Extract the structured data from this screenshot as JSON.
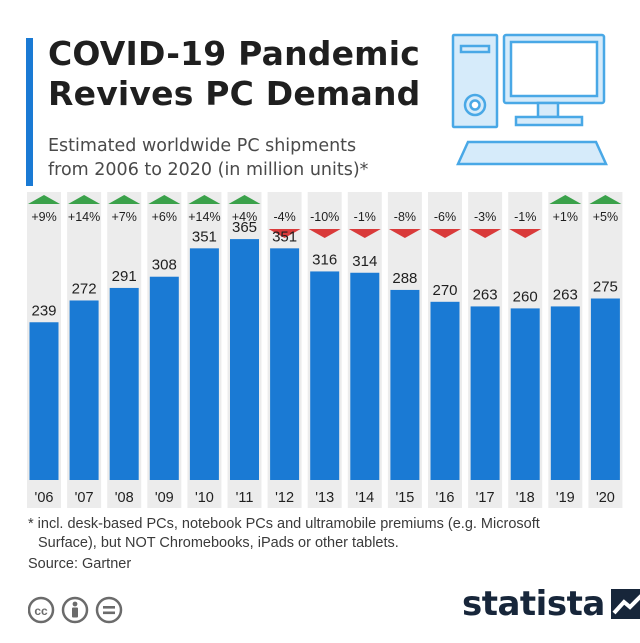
{
  "header": {
    "title_line1": "COVID-19 Pandemic",
    "title_line2": "Revives PC Demand",
    "subtitle_line1": "Estimated worldwide PC shipments",
    "subtitle_line2": "from 2006 to 2020 (in million units)*"
  },
  "chart_data": {
    "type": "bar",
    "title": "COVID-19 Pandemic Revives PC Demand",
    "subtitle": "Estimated worldwide PC shipments from 2006 to 2020 (in million units)*",
    "xlabel": "",
    "ylabel": "",
    "categories": [
      "'06",
      "'07",
      "'08",
      "'09",
      "'10",
      "'11",
      "'12",
      "'13",
      "'14",
      "'15",
      "'16",
      "'17",
      "'18",
      "'19",
      "'20"
    ],
    "values": [
      239,
      272,
      291,
      308,
      351,
      365,
      351,
      316,
      314,
      288,
      270,
      263,
      260,
      263,
      275
    ],
    "yoy_change": [
      "+9%",
      "+14%",
      "+7%",
      "+6%",
      "+14%",
      "+4%",
      "-4%",
      "-10%",
      "-1%",
      "-8%",
      "-6%",
      "-3%",
      "-1%",
      "+1%",
      "+5%"
    ],
    "yoy_direction": [
      "up",
      "up",
      "up",
      "up",
      "up",
      "up",
      "down",
      "down",
      "down",
      "down",
      "down",
      "down",
      "down",
      "up",
      "up"
    ],
    "ylim": [
      0,
      400
    ],
    "grid": false,
    "legend": "none",
    "colors": {
      "bar": "#1a7ad4",
      "up_arrow": "#3aa14a",
      "down_arrow": "#d93a3a",
      "column_band": "#ececec"
    }
  },
  "footer": {
    "footnote_line1": "* incl. desk-based PCs, notebook PCs and ultramobile premiums (e.g. Microsoft",
    "footnote_line2": "Surface), but NOT Chromebooks, iPads or other tablets.",
    "source": "Source: Gartner",
    "brand": "statista"
  },
  "icons": {
    "illustration": "desktop-pc-icon",
    "license": [
      "cc-icon",
      "attribution-icon",
      "no-derivatives-icon"
    ],
    "logo": "statista-logo-icon"
  }
}
